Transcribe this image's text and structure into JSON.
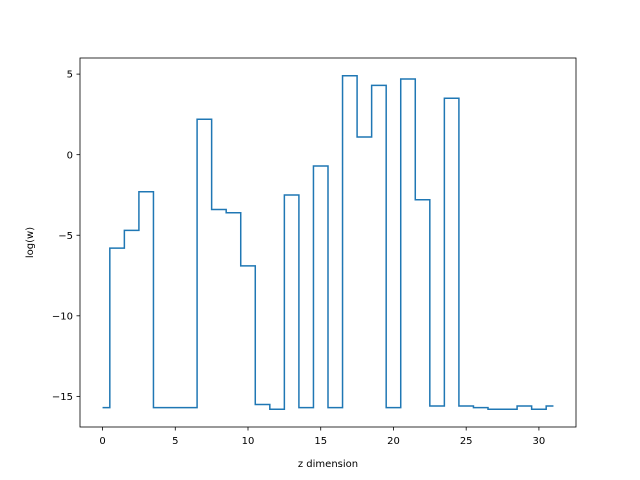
{
  "chart_data": {
    "type": "line",
    "drawstyle": "steps-mid",
    "xlabel": "z dimension",
    "ylabel": "log(w)",
    "xlim": [
      -1.55,
      32.55
    ],
    "ylim": [
      -16.9,
      6.0
    ],
    "xticks": [
      0,
      5,
      10,
      15,
      20,
      25,
      30
    ],
    "yticks": [
      5,
      0,
      -5,
      -10,
      -15
    ],
    "ytick_labels": [
      "5",
      "0",
      "−5",
      "−10",
      "−15"
    ],
    "grid": false,
    "series": [
      {
        "color": "#1f77b4",
        "x": [
          0,
          1,
          2,
          3,
          4,
          5,
          6,
          7,
          8,
          9,
          10,
          11,
          12,
          13,
          14,
          15,
          16,
          17,
          18,
          19,
          20,
          21,
          22,
          23,
          24,
          25,
          26,
          27,
          28,
          29,
          30,
          31
        ],
        "y": [
          -15.7,
          -5.8,
          -4.7,
          -2.3,
          -15.7,
          -15.7,
          -15.7,
          2.2,
          -3.4,
          -3.6,
          -6.9,
          -15.5,
          -15.8,
          -2.5,
          -15.7,
          -0.7,
          -15.7,
          4.9,
          1.1,
          4.3,
          -15.7,
          4.7,
          -2.8,
          -15.6,
          3.5,
          -15.6,
          -15.7,
          -15.8,
          -15.8,
          -15.6,
          -15.8,
          -15.6
        ]
      }
    ]
  }
}
